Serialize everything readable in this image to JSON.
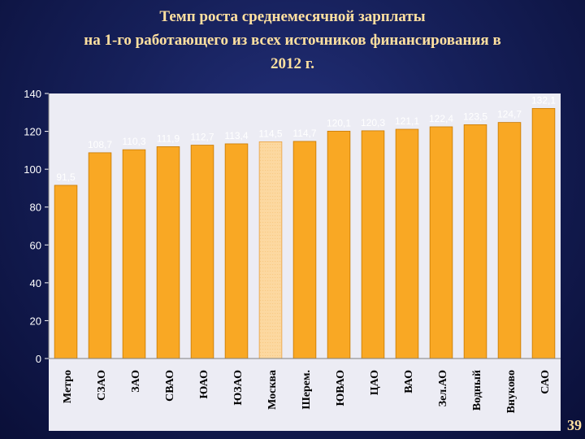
{
  "title": {
    "line1": "Темп роста среднемесячной зарплаты",
    "line2": "на 1-го работающего из всех источников финансирования в",
    "line3": "2012 г."
  },
  "page_number": "39",
  "colors": {
    "bar": "#f9a824",
    "highlight_bar": "#fcd8a0",
    "tick_text": "#ffffff",
    "data_label": "#ffffff",
    "category_text": "#000000",
    "title": "#ffe0a0"
  },
  "chart_data": {
    "type": "bar",
    "title": "",
    "xlabel": "",
    "ylabel": "",
    "ylim": [
      0,
      140
    ],
    "yticks": [
      0,
      20,
      40,
      60,
      80,
      100,
      120,
      140
    ],
    "grid": false,
    "categories": [
      "Метро",
      "СЗАО",
      "ЗАО",
      "СВАО",
      "ЮАО",
      "ЮЗАО",
      "Москва",
      "Шерем.",
      "ЮВАО",
      "ЦАО",
      "ВАО",
      "Зел.АО",
      "Водный",
      "Внуково",
      "САО"
    ],
    "values": [
      91.5,
      108.7,
      110.3,
      111.9,
      112.7,
      113.4,
      114.5,
      114.7,
      120.1,
      120.3,
      121.1,
      122.4,
      123.5,
      124.7,
      132.1
    ],
    "value_labels": [
      "91,5",
      "108,7",
      "110,3",
      "111,9",
      "112,7",
      "113,4",
      "114,5",
      "114,7",
      "120,1",
      "120,3",
      "121,1",
      "122,4",
      "123,5",
      "124,7",
      "132,1"
    ],
    "highlighted_category": "Москва"
  }
}
